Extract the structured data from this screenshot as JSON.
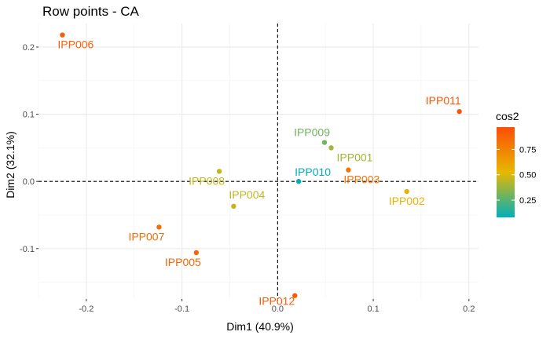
{
  "chart_data": {
    "type": "scatter",
    "title": "Row points - CA",
    "xlabel": "Dim1 (40.9%)",
    "ylabel": "Dim2 (32.1%)",
    "xlim": [
      -0.25,
      0.21
    ],
    "ylim": [
      -0.175,
      0.235
    ],
    "x_ticks": [
      -0.2,
      -0.1,
      0.0,
      0.1,
      0.2
    ],
    "x_tick_labels": [
      "-0.2",
      "-0.1",
      "0.0",
      "0.1",
      "0.2"
    ],
    "y_ticks": [
      -0.1,
      0.0,
      0.1,
      0.2
    ],
    "y_tick_labels": [
      "-0.1",
      "0.0",
      "0.1",
      "0.2"
    ],
    "grid": true,
    "reference_lines": {
      "x": 0,
      "y": 0,
      "style": "dashed"
    },
    "legend": {
      "title": "cos2",
      "position": "right",
      "ticks": [
        0.25,
        0.5,
        0.75
      ],
      "tick_labels": [
        "0.25",
        "0.50",
        "0.75"
      ],
      "range": [
        0.08,
        0.97
      ],
      "gradient": [
        "#00AFBB",
        "#E7B800",
        "#FC4E07"
      ]
    },
    "points": [
      {
        "label": "IPP006",
        "x": -0.225,
        "y": 0.218,
        "cos2": 0.9
      },
      {
        "label": "IPP011",
        "x": 0.19,
        "y": 0.104,
        "cos2": 0.93
      },
      {
        "label": "IPP009",
        "x": 0.049,
        "y": 0.058,
        "cos2": 0.3
      },
      {
        "label": "IPP001",
        "x": 0.056,
        "y": 0.05,
        "cos2": 0.4
      },
      {
        "label": "IPP008",
        "x": -0.061,
        "y": 0.015,
        "cos2": 0.45
      },
      {
        "label": "IPP010",
        "x": 0.022,
        "y": 0.0,
        "cos2": 0.08
      },
      {
        "label": "IPP003",
        "x": 0.074,
        "y": 0.017,
        "cos2": 0.8
      },
      {
        "label": "IPP002",
        "x": 0.135,
        "y": -0.015,
        "cos2": 0.55
      },
      {
        "label": "IPP004",
        "x": -0.046,
        "y": -0.037,
        "cos2": 0.45
      },
      {
        "label": "IPP007",
        "x": -0.124,
        "y": -0.068,
        "cos2": 0.85
      },
      {
        "label": "IPP005",
        "x": -0.085,
        "y": -0.106,
        "cos2": 0.87
      },
      {
        "label": "IPP012",
        "x": 0.018,
        "y": -0.17,
        "cos2": 0.92
      }
    ]
  }
}
